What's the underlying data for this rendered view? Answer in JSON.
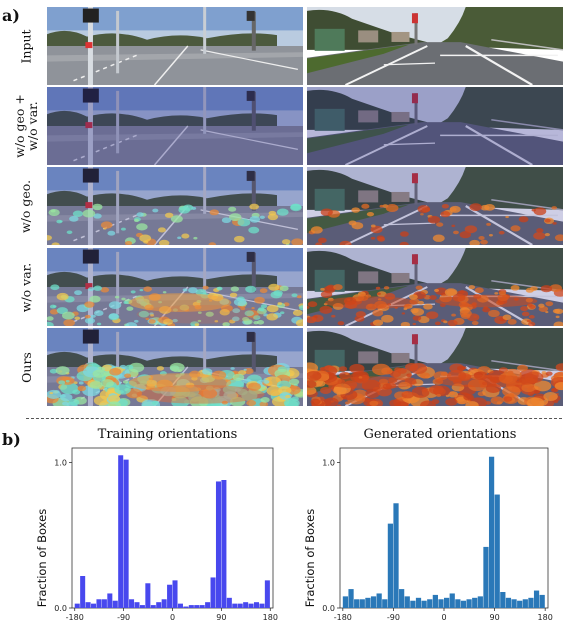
{
  "panel_a": {
    "label": "a)",
    "rows": [
      {
        "label": "Input",
        "overlay": "none"
      },
      {
        "label": "w/o geo +\nw/o var.",
        "overlay": "tint"
      },
      {
        "label": "w/o geo.",
        "overlay": "sparse"
      },
      {
        "label": "w/o var.",
        "overlay": "medium"
      },
      {
        "label": "Ours",
        "overlay": "dense"
      }
    ]
  },
  "panel_b": {
    "label": "b)"
  },
  "chart_data": [
    {
      "type": "bar",
      "title": "Training orientations",
      "xlabel": "",
      "ylabel": "Fraction of Boxes",
      "xticks": [
        "-180",
        "-90",
        "0",
        "90",
        "180"
      ],
      "yticks": [
        "0.0",
        "1.0"
      ],
      "xlim": [
        -180,
        180
      ],
      "ylim": [
        0,
        1.1
      ],
      "color": "#4848ee",
      "bin_width": 10,
      "x": [
        -175,
        -165,
        -155,
        -145,
        -135,
        -125,
        -115,
        -105,
        -95,
        -85,
        -75,
        -65,
        -55,
        -45,
        -35,
        -25,
        -15,
        -5,
        5,
        15,
        25,
        35,
        45,
        55,
        65,
        75,
        85,
        95,
        105,
        115,
        125,
        135,
        145,
        155,
        165,
        175
      ],
      "values": [
        0.03,
        0.22,
        0.04,
        0.03,
        0.06,
        0.06,
        0.1,
        0.05,
        1.05,
        1.02,
        0.06,
        0.04,
        0.02,
        0.17,
        0.02,
        0.04,
        0.06,
        0.16,
        0.19,
        0.03,
        0.01,
        0.02,
        0.02,
        0.02,
        0.04,
        0.21,
        0.87,
        0.88,
        0.07,
        0.03,
        0.03,
        0.04,
        0.03,
        0.04,
        0.03,
        0.19
      ]
    },
    {
      "type": "bar",
      "title": "Generated orientations",
      "xlabel": "",
      "ylabel": "Fraction of Boxes",
      "xticks": [
        "-180",
        "-90",
        "0",
        "90",
        "180"
      ],
      "yticks": [
        "0.0",
        "1.0"
      ],
      "xlim": [
        -180,
        180
      ],
      "ylim": [
        0,
        1.1
      ],
      "color": "#2a78b8",
      "bin_width": 10,
      "x": [
        -175,
        -165,
        -155,
        -145,
        -135,
        -125,
        -115,
        -105,
        -95,
        -85,
        -75,
        -65,
        -55,
        -45,
        -35,
        -25,
        -15,
        -5,
        5,
        15,
        25,
        35,
        45,
        55,
        65,
        75,
        85,
        95,
        105,
        115,
        125,
        135,
        145,
        155,
        165,
        175
      ],
      "values": [
        0.08,
        0.13,
        0.06,
        0.06,
        0.07,
        0.08,
        0.1,
        0.06,
        0.58,
        0.72,
        0.13,
        0.08,
        0.05,
        0.07,
        0.05,
        0.06,
        0.09,
        0.06,
        0.07,
        0.1,
        0.06,
        0.05,
        0.06,
        0.07,
        0.08,
        0.42,
        1.04,
        0.78,
        0.11,
        0.07,
        0.06,
        0.05,
        0.06,
        0.07,
        0.12,
        0.09
      ]
    }
  ]
}
